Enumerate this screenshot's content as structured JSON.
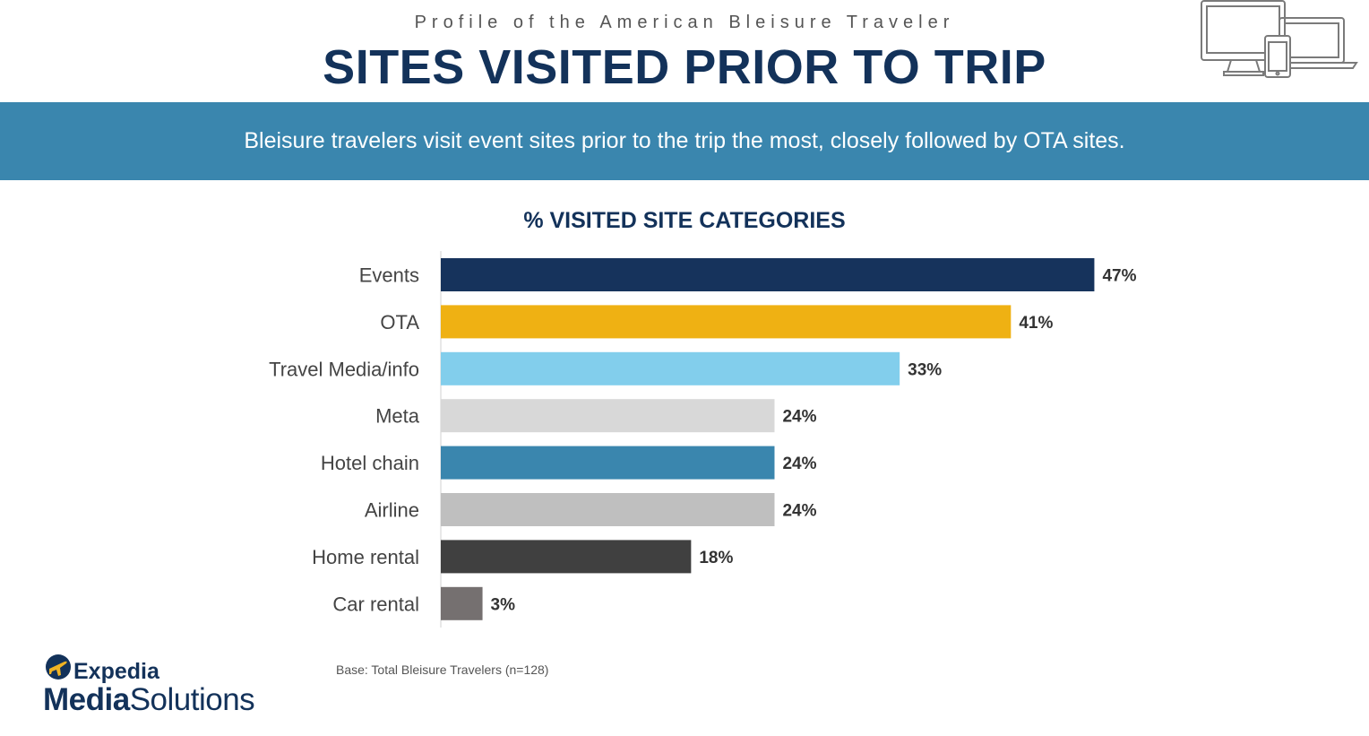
{
  "header": {
    "supertitle": "Profile of the American Bleisure Traveler",
    "title": "SITES VISITED PRIOR TO TRIP",
    "devices_icon": "devices-icon"
  },
  "banner": {
    "text": "Bleisure travelers visit event sites prior to the trip the most, closely followed by OTA sites."
  },
  "chart_data": {
    "type": "bar",
    "orientation": "horizontal",
    "title": "% VISITED SITE CATEGORIES",
    "categories": [
      "Events",
      "OTA",
      "Travel Media/info",
      "Meta",
      "Hotel chain",
      "Airline",
      "Home rental",
      "Car rental"
    ],
    "values": [
      47,
      41,
      33,
      24,
      24,
      24,
      18,
      3
    ],
    "value_labels": [
      "47%",
      "41%",
      "33%",
      "24%",
      "24%",
      "24%",
      "18%",
      "3%"
    ],
    "colors": [
      "#16335c",
      "#efb113",
      "#82ceec",
      "#d8d8d8",
      "#3a86ae",
      "#bfbfbf",
      "#404040",
      "#757070"
    ],
    "xlim": [
      0,
      50
    ],
    "grid": false,
    "legend": "none"
  },
  "footer": {
    "base_note": "Base: Total Bleisure Travelers (n=128)",
    "logo_line1": "Expedia",
    "logo_line2_bold": "Media",
    "logo_line2_regular": "Solutions",
    "logo_icon": "plane-icon"
  }
}
